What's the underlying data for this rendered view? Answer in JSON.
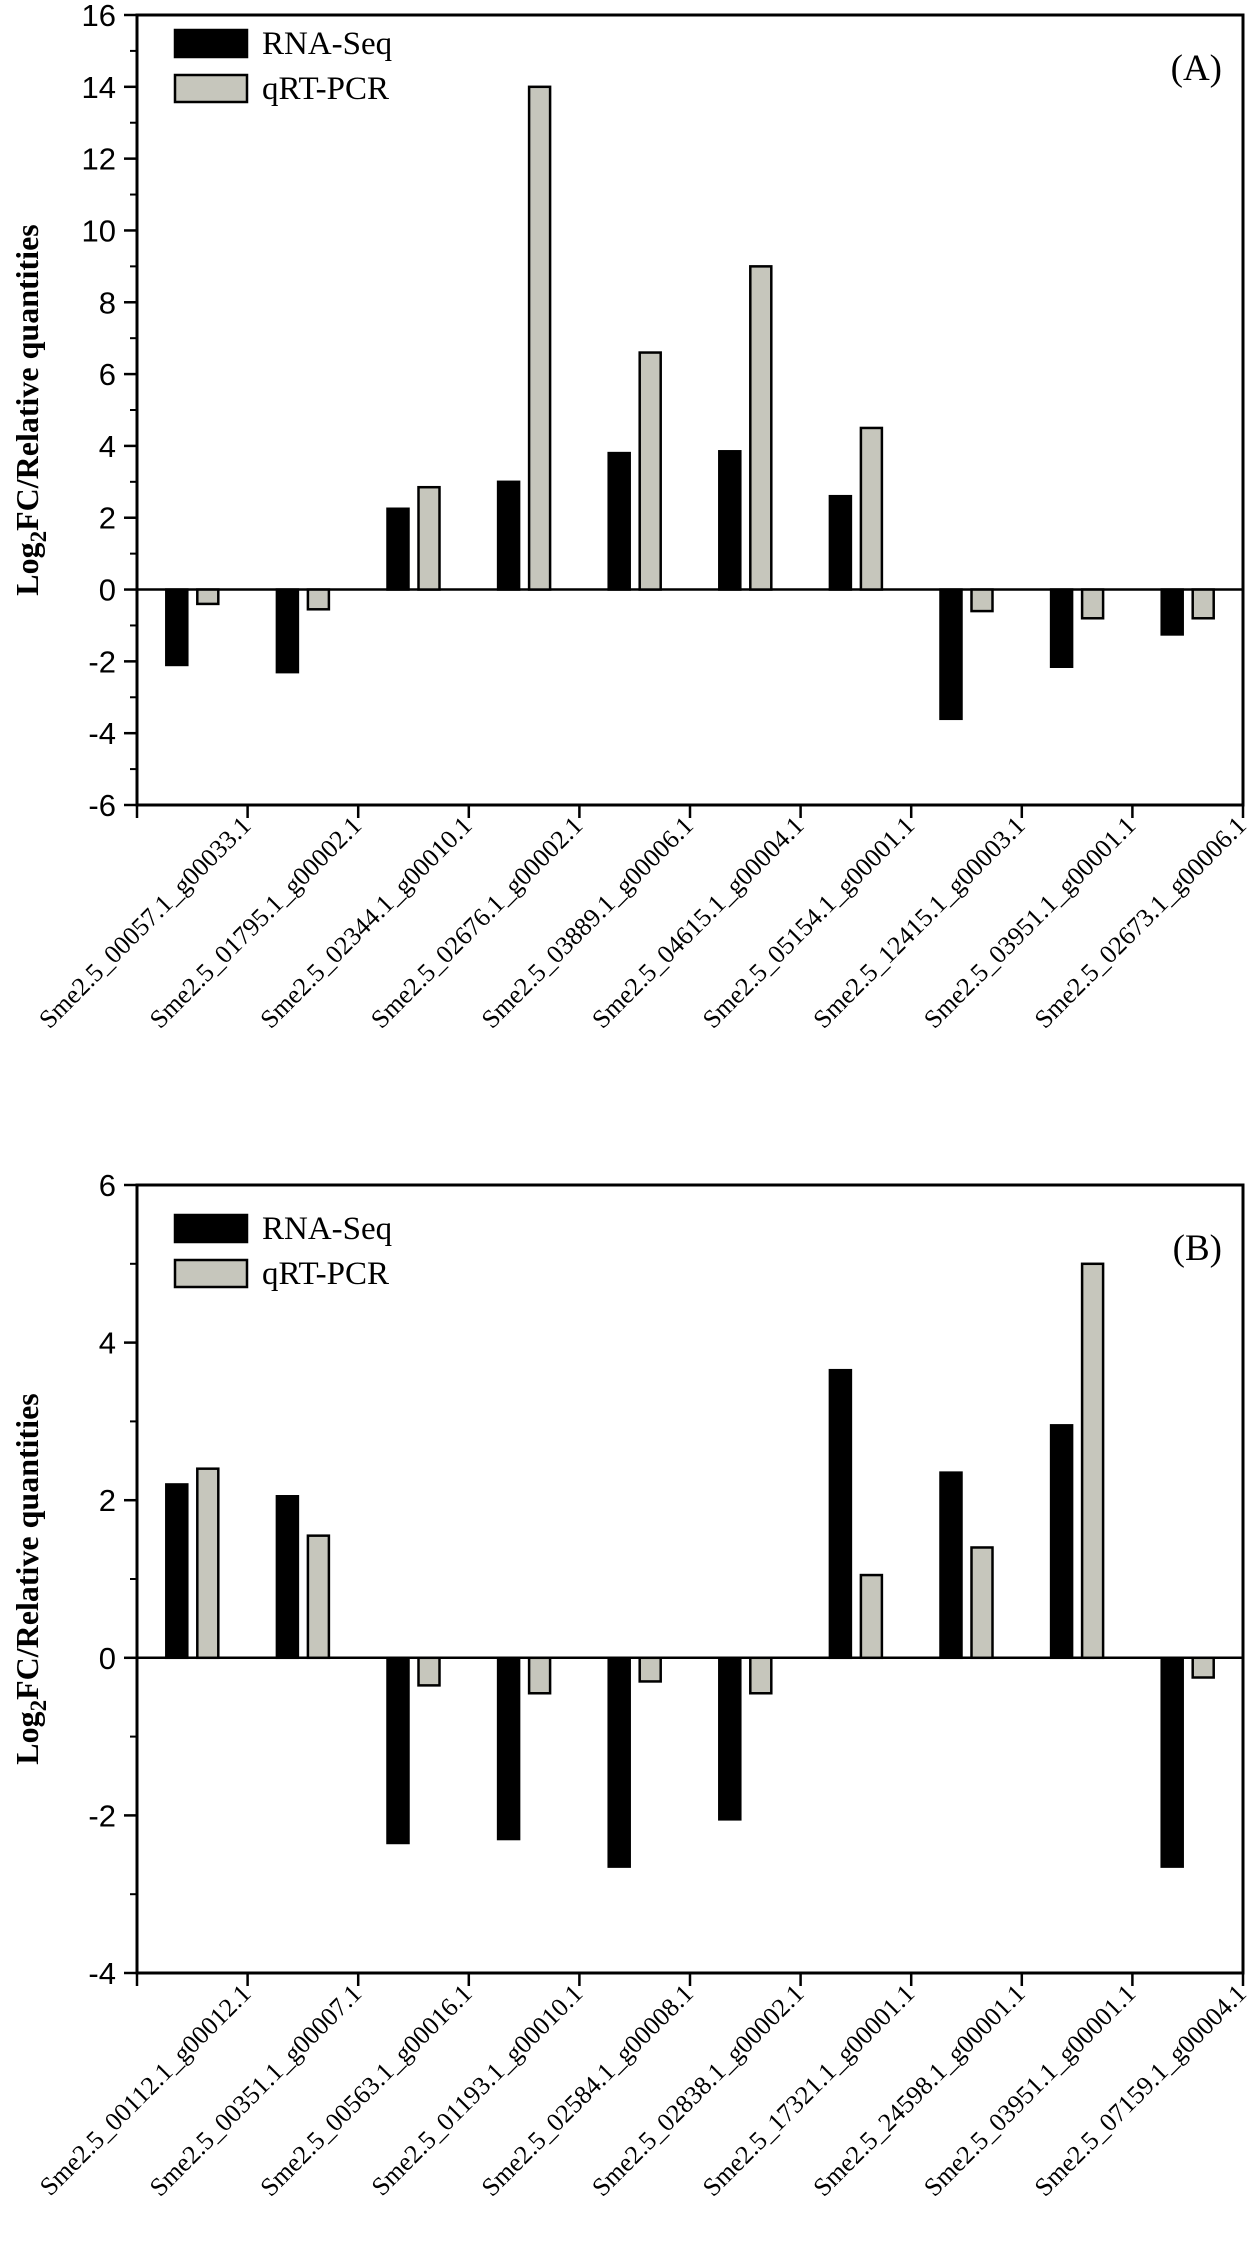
{
  "figure": {
    "background": "#ffffff",
    "axis_color": "#000000",
    "ylabel_rich": {
      "prefix": "Log",
      "sub": "2",
      "suffix": "FC/Relative quantities"
    }
  },
  "chart_data": [
    {
      "type": "bar",
      "panel": "(A)",
      "title": "",
      "xlabel": "",
      "ylabel": "Log2FC/Relative quantities",
      "ylim": [
        -6,
        16
      ],
      "ytick_step": 2,
      "grid": false,
      "legend_position": "upper-left",
      "categories": [
        "Sme2.5_00057.1_g00033.1",
        "Sme2.5_01795.1_g00002.1",
        "Sme2.5_02344.1_g00010.1",
        "Sme2.5_02676.1_g00002.1",
        "Sme2.5_03889.1_g00006.1",
        "Sme2.5_04615.1_g00004.1",
        "Sme2.5_05154.1_g00001.1",
        "Sme2.5_12415.1_g00003.1",
        "Sme2.5_03951.1_g00001.1",
        "Sme2.5_02673.1_g00006.1"
      ],
      "series": [
        {
          "name": "RNA-Seq",
          "color": "#000000",
          "values": [
            -2.1,
            -2.3,
            2.25,
            3.0,
            3.8,
            3.85,
            2.6,
            -3.6,
            -2.15,
            -1.25
          ]
        },
        {
          "name": "qRT-PCR",
          "color": "#c6c6bc",
          "values": [
            -0.4,
            -0.55,
            2.85,
            14.0,
            6.6,
            9.0,
            4.5,
            -0.6,
            -0.8,
            -0.8
          ]
        }
      ]
    },
    {
      "type": "bar",
      "panel": "(B)",
      "title": "",
      "xlabel": "",
      "ylabel": "Log2FC/Relative quantities",
      "ylim": [
        -4,
        6
      ],
      "ytick_step": 2,
      "grid": false,
      "legend_position": "upper-left",
      "categories": [
        "Sme2.5_00112.1_g00012.1",
        "Sme2.5_00351.1_g00007.1",
        "Sme2.5_00563.1_g00016.1",
        "Sme2.5_01193.1_g00010.1",
        "Sme2.5_02584.1_g00008.1",
        "Sme2.5_02838.1_g00002.1",
        "Sme2.5_17321.1_g00001.1",
        "Sme2.5_24598.1_g00001.1",
        "Sme2.5_03951.1_g00001.1",
        "Sme2.5_07159.1_g00004.1"
      ],
      "series": [
        {
          "name": "RNA-Seq",
          "color": "#000000",
          "values": [
            2.2,
            2.05,
            -2.35,
            -2.3,
            -2.65,
            -2.05,
            3.65,
            2.35,
            2.95,
            -2.65
          ]
        },
        {
          "name": "qRT-PCR",
          "color": "#c6c6bc",
          "values": [
            2.4,
            1.55,
            -0.35,
            -0.45,
            -0.3,
            -0.45,
            1.05,
            1.4,
            5.0,
            -0.25
          ]
        }
      ]
    }
  ]
}
